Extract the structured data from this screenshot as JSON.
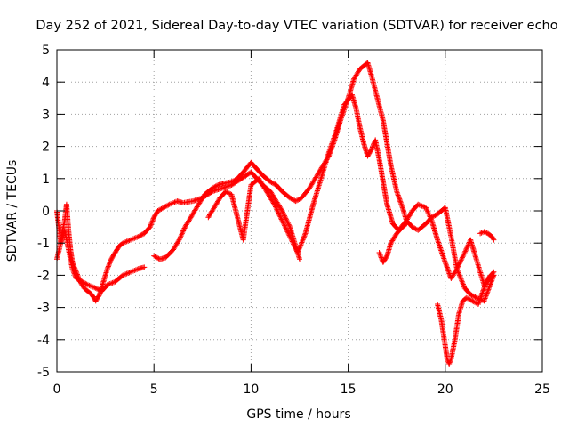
{
  "chart_data": {
    "type": "scatter",
    "title": "Day 252 of 2021, Sidereal Day-to-day VTEC variation (SDTVAR) for receiver echo",
    "xlabel": "GPS time / hours",
    "ylabel": "SDTVAR / TECUs",
    "xlim": [
      0,
      25
    ],
    "ylim": [
      -5,
      5
    ],
    "xticks": [
      0,
      5,
      10,
      15,
      20,
      25
    ],
    "yticks": [
      -5,
      -4,
      -3,
      -2,
      -1,
      0,
      1,
      2,
      3,
      4,
      5
    ],
    "grid": true,
    "marker": "+",
    "color": "#ff0000",
    "series": [
      {
        "x": [
          0.0,
          0.2,
          0.4,
          0.6,
          0.8,
          1.0,
          1.3,
          1.6,
          2.0,
          2.3,
          2.6,
          3.0,
          3.4,
          3.8,
          4.2,
          4.5
        ],
        "y": [
          -1.5,
          -1.0,
          -0.6,
          -1.2,
          -1.8,
          -2.1,
          -2.2,
          -2.3,
          -2.4,
          -2.5,
          -2.3,
          -2.2,
          -2.0,
          -1.9,
          -1.8,
          -1.75
        ]
      },
      {
        "x": [
          0.0,
          0.1,
          0.2,
          0.3,
          0.4,
          0.5,
          0.6,
          0.7,
          0.8,
          1.0,
          1.2,
          1.4,
          1.6,
          1.8,
          2.0,
          2.2,
          2.4,
          2.6,
          2.8,
          3.0,
          3.2,
          3.4,
          3.6,
          3.8,
          4.0,
          4.2,
          4.5,
          4.8,
          5.0,
          5.2,
          5.5,
          5.8,
          6.2,
          6.5,
          7.0,
          7.5,
          8.0,
          8.5,
          9.0,
          9.5,
          10.0,
          10.3,
          10.6,
          11.0,
          11.3,
          11.6,
          12.0,
          12.5
        ],
        "y": [
          0.0,
          -0.5,
          -1.0,
          -0.6,
          -0.3,
          0.2,
          -0.6,
          -1.2,
          -1.6,
          -1.9,
          -2.2,
          -2.4,
          -2.5,
          -2.6,
          -2.8,
          -2.6,
          -2.2,
          -1.8,
          -1.5,
          -1.3,
          -1.1,
          -1.0,
          -0.95,
          -0.9,
          -0.85,
          -0.8,
          -0.7,
          -0.5,
          -0.2,
          0.0,
          0.1,
          0.2,
          0.3,
          0.25,
          0.3,
          0.4,
          0.6,
          0.7,
          0.8,
          1.0,
          1.2,
          1.0,
          0.8,
          0.6,
          0.3,
          0.0,
          -0.5,
          -1.5
        ]
      },
      {
        "x": [
          5.0,
          5.3,
          5.6,
          6.0,
          6.3,
          6.6,
          7.0,
          7.3,
          7.6,
          8.0,
          8.3,
          8.6,
          9.0,
          9.3,
          9.6,
          10.0,
          10.3,
          10.6,
          11.0,
          11.3,
          11.6,
          12.0,
          12.3,
          12.6,
          13.0,
          13.3,
          13.6,
          14.0,
          14.3,
          14.6,
          15.0,
          15.3,
          15.6,
          16.0,
          16.2,
          16.5,
          16.8,
          17.0,
          17.2,
          17.5,
          17.8,
          18.0,
          18.3,
          18.6,
          19.0,
          19.3,
          19.6,
          20.0,
          20.3,
          20.6,
          21.0,
          21.3,
          21.6,
          22.0,
          22.5
        ],
        "y": [
          -1.4,
          -1.5,
          -1.45,
          -1.2,
          -0.9,
          -0.5,
          -0.1,
          0.2,
          0.5,
          0.7,
          0.8,
          0.85,
          0.9,
          1.0,
          1.2,
          1.5,
          1.3,
          1.1,
          0.9,
          0.8,
          0.6,
          0.4,
          0.3,
          0.4,
          0.7,
          1.0,
          1.3,
          1.7,
          2.2,
          2.8,
          3.5,
          4.1,
          4.4,
          4.6,
          4.2,
          3.5,
          2.8,
          2.1,
          1.4,
          0.6,
          0.1,
          -0.3,
          -0.5,
          -0.6,
          -0.4,
          -0.2,
          -0.1,
          0.1,
          -0.8,
          -1.8,
          -2.4,
          -2.6,
          -2.7,
          -2.8,
          -2.0
        ]
      },
      {
        "x": [
          7.8,
          8.1,
          8.4,
          8.7,
          9.0,
          9.3,
          9.6,
          10.0,
          10.4,
          10.8,
          11.2,
          11.6,
          12.0,
          12.4,
          12.8,
          13.2,
          13.6,
          14.0,
          14.4,
          14.8,
          15.2,
          15.4,
          15.6,
          15.8,
          16.0,
          16.2,
          16.4,
          16.6,
          16.8,
          17.0,
          17.3,
          17.6,
          18.0,
          18.3,
          18.6,
          19.0,
          19.3,
          19.6,
          20.0,
          20.3,
          20.6,
          21.0,
          21.3,
          21.6,
          22.0,
          22.3,
          22.5
        ],
        "y": [
          -0.2,
          0.1,
          0.4,
          0.6,
          0.5,
          -0.2,
          -0.9,
          0.8,
          1.0,
          0.6,
          0.2,
          -0.3,
          -0.8,
          -1.3,
          -0.7,
          0.2,
          1.0,
          1.8,
          2.5,
          3.3,
          3.6,
          3.2,
          2.6,
          2.1,
          1.7,
          1.9,
          2.2,
          1.6,
          0.9,
          0.2,
          -0.4,
          -0.6,
          -0.3,
          0.0,
          0.2,
          0.1,
          -0.3,
          -0.9,
          -1.6,
          -2.1,
          -1.8,
          -1.3,
          -0.9,
          -1.5,
          -2.3,
          -2.1,
          -2.0
        ]
      },
      {
        "x": [
          19.6,
          19.8,
          20.0,
          20.1,
          20.2,
          20.3,
          20.5,
          20.7,
          20.9,
          21.1,
          21.4,
          21.7,
          22.0,
          22.2,
          22.5
        ],
        "y": [
          -2.9,
          -3.4,
          -4.2,
          -4.6,
          -4.75,
          -4.6,
          -4.0,
          -3.2,
          -2.8,
          -2.7,
          -2.8,
          -2.9,
          -2.4,
          -2.1,
          -1.9
        ]
      },
      {
        "x": [
          21.8,
          22.0,
          22.2,
          22.4,
          22.5
        ],
        "y": [
          -0.7,
          -0.65,
          -0.7,
          -0.8,
          -0.9
        ]
      },
      {
        "x": [
          16.6,
          16.8,
          17.0,
          17.2,
          17.5,
          17.8,
          18.0
        ],
        "y": [
          -1.3,
          -1.6,
          -1.4,
          -1.0,
          -0.7,
          -0.5,
          -0.4
        ]
      }
    ]
  }
}
